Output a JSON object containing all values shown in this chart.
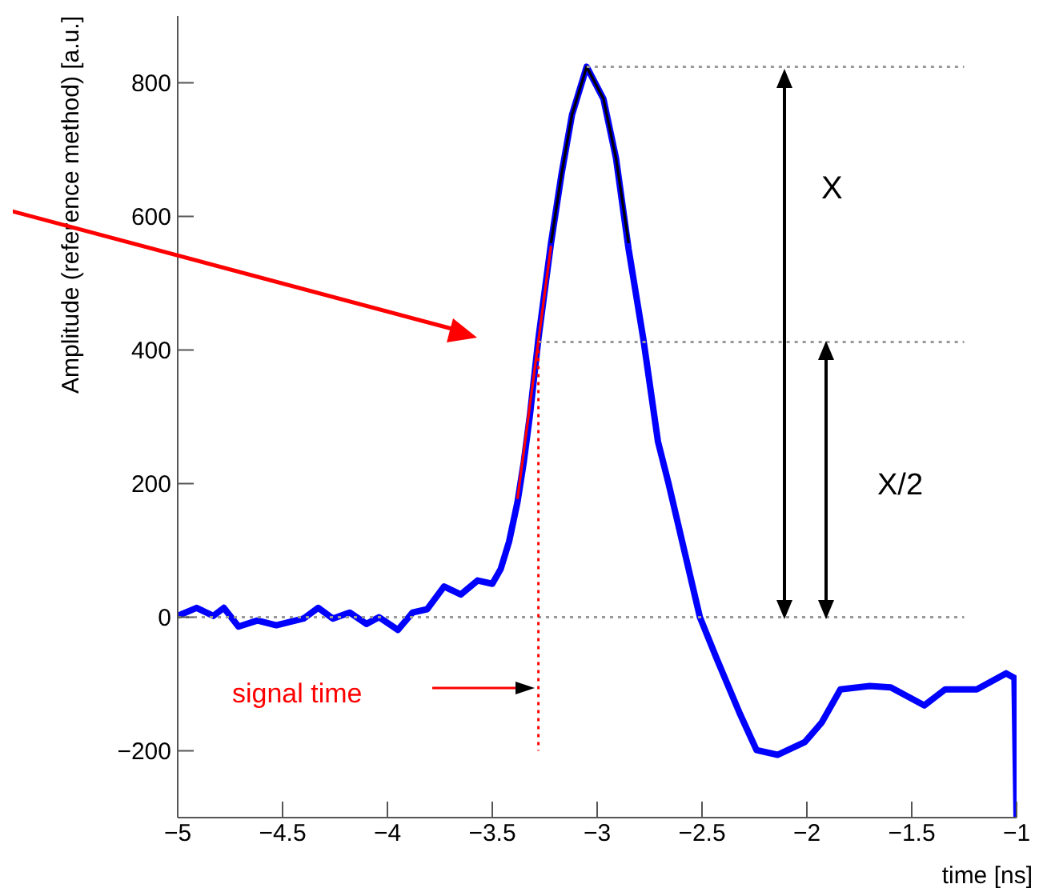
{
  "chart_data": {
    "type": "line",
    "xlabel": "time [ns]",
    "ylabel": "Amplitude (reference method)  [a.u.]",
    "xlim": [
      -5,
      -1
    ],
    "xticks": [
      {
        "value": -5,
        "label": "−5"
      },
      {
        "value": -4.5,
        "label": "−4.5"
      },
      {
        "value": -4,
        "label": "−4"
      },
      {
        "value": -3.5,
        "label": "−3.5"
      },
      {
        "value": -3,
        "label": "−3"
      },
      {
        "value": -2.5,
        "label": "−2.5"
      },
      {
        "value": -2,
        "label": "−2"
      },
      {
        "value": -1.5,
        "label": "−1.5"
      },
      {
        "value": -1,
        "label": "−1"
      }
    ],
    "ylim": [
      -300,
      900
    ],
    "yticks": [
      {
        "value": -200,
        "label": "−200"
      },
      0,
      200,
      400,
      600,
      800
    ],
    "marker": "none",
    "annotations": [
      "X",
      "X/2",
      "signal time"
    ],
    "series": [
      {
        "color": "#0000ff",
        "x": [
          -5,
          -4.91,
          -4.83,
          -4.78,
          -4.71,
          -4.62,
          -4.53,
          -4.4,
          -4.33,
          -4.26,
          -4.18,
          -4.1,
          -4.04,
          -3.95,
          -3.88,
          -3.81,
          -3.73,
          -3.65,
          -3.57,
          -3.5,
          -3.46,
          -3.42,
          -3.38,
          -3.35,
          -3.32,
          -3.28,
          -3.22,
          -3.17,
          -3.12,
          -3.05,
          -2.97,
          -2.91,
          -2.85,
          -2.78,
          -2.71,
          -2.66,
          -2.51,
          -2.43,
          -2.32,
          -2.24,
          -2.14,
          -2.01,
          -1.93,
          -1.84,
          -1.7,
          -1.6,
          -1.44,
          -1.34,
          -1.19,
          -1.05,
          -1.01,
          -1
        ],
        "values": [
          2,
          14,
          2,
          14,
          -14,
          -5,
          -12,
          -2,
          14,
          -2,
          7,
          -10,
          0,
          -19,
          7,
          12,
          46,
          34,
          55,
          50,
          72,
          113,
          172,
          232,
          304,
          417,
          560,
          663,
          752,
          824,
          776,
          687,
          551,
          417,
          263,
          201,
          0,
          -62,
          -144,
          -199,
          -206,
          -187,
          -158,
          -108,
          -103,
          -105,
          -132,
          -108,
          -108,
          -84,
          -91,
          -300
        ]
      },
      {
        "type": "line",
        "color": "#ff0000",
        "x": [
          -3.38,
          -3.22
        ],
        "values": [
          177,
          556
        ]
      },
      {
        "type": "line",
        "color": "#000000",
        "x": [
          -3.22,
          -3.17,
          -3.12,
          -3.05,
          -2.97,
          -2.91,
          -2.85
        ],
        "values": [
          560,
          663,
          752,
          824,
          776,
          687,
          560
        ]
      },
      {
        "type": "line",
        "color": "#999999",
        "line_style": "dotted",
        "x": [
          -3.05,
          -1.25
        ],
        "values": [
          824,
          824
        ]
      },
      {
        "type": "line",
        "color": "#999999",
        "line_style": "dotted",
        "x": [
          -3.28,
          -1.25
        ],
        "values": [
          412,
          412
        ]
      },
      {
        "type": "line",
        "color": "#999999",
        "line_style": "dotted",
        "x": [
          -5,
          -1.25
        ],
        "values": [
          0,
          0
        ]
      },
      {
        "type": "line",
        "color": "#ff0000",
        "line_style": "dotted",
        "x": [
          -3.28,
          -3.28
        ],
        "values": [
          412,
          -200
        ]
      }
    ]
  }
}
